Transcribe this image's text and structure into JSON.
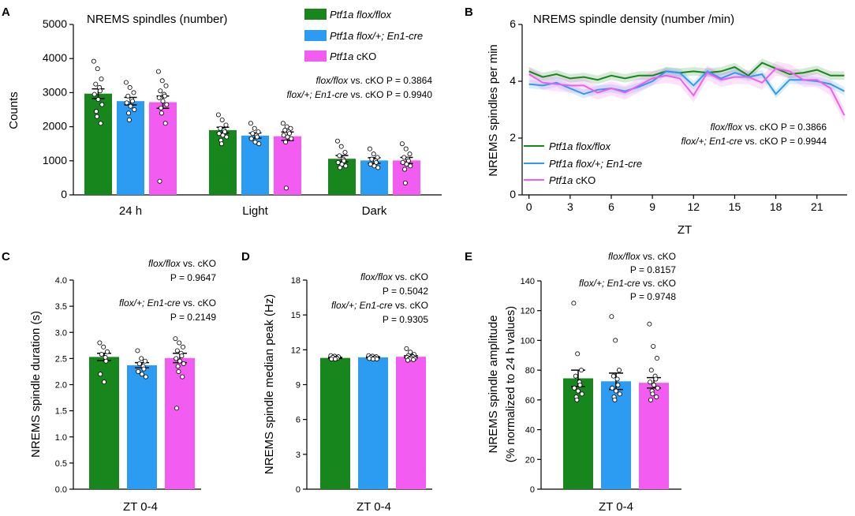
{
  "colors": {
    "flox": "#17871d",
    "het": "#2c9bf2",
    "cko": "#f25cf0",
    "axis": "#000000",
    "dot_fill": "#ffffff"
  },
  "legend": {
    "flox": "Ptf1a flox/flox",
    "het_pre": "Ptf1a flox/+; ",
    "het_it": "En1-cre",
    "cko_it": "Ptf1a",
    "cko_rest": " cKO"
  },
  "stats": {
    "cmp1": "flox/flox",
    "cmp2": "flox/+; En1-cre",
    "vs": " vs. cKO",
    "A": {
      "p1": "P = 0.3864",
      "p2": "P = 0.9940"
    },
    "B": {
      "p1": "P = 0.3866",
      "p2": "P = 0.9944"
    },
    "C": {
      "p1": "P = 0.9647",
      "p2": "P = 0.2149"
    },
    "D": {
      "p1": "P = 0.5042",
      "p2": "P = 0.9305"
    },
    "E": {
      "p1": "P = 0.8157",
      "p2": "P = 0.9748"
    }
  },
  "chart_data": [
    {
      "id": "A",
      "panel_label": "A",
      "type": "bar",
      "title": "NREMS spindles (number)",
      "ylabel": "Counts",
      "xlabel": "",
      "ylim": [
        0,
        5000
      ],
      "yticks": [
        0,
        1000,
        2000,
        3000,
        4000,
        5000
      ],
      "categories": [
        "24 h",
        "Light",
        "Dark"
      ],
      "series": [
        {
          "name": "Ptf1a flox/flox",
          "values": [
            2970,
            1900,
            1060
          ],
          "sem": [
            140,
            85,
            95
          ],
          "points": [
            [
              3920,
              3700,
              3400,
              3250,
              3150,
              3050,
              2950,
              2800,
              2650,
              2450,
              2300,
              2100
            ],
            [
              2350,
              2200,
              2050,
              1950,
              1900,
              1850,
              1800,
              1750,
              1700,
              1600,
              1500
            ],
            [
              1580,
              1420,
              1250,
              1150,
              1050,
              1000,
              950,
              900,
              850,
              800
            ]
          ]
        },
        {
          "name": "Ptf1a flox/+; En1-cre",
          "values": [
            2750,
            1740,
            1010
          ],
          "sem": [
            110,
            75,
            80
          ],
          "points": [
            [
              3300,
              3150,
              3000,
              2900,
              2800,
              2750,
              2700,
              2600,
              2500,
              2400,
              2200
            ],
            [
              2100,
              1950,
              1850,
              1800,
              1750,
              1700,
              1650,
              1550,
              1500
            ],
            [
              1350,
              1200,
              1100,
              1050,
              1000,
              950,
              900,
              850,
              800
            ]
          ]
        },
        {
          "name": "Ptf1a cKO",
          "values": [
            2720,
            1720,
            1010
          ],
          "sem": [
            180,
            125,
            90
          ],
          "points": [
            [
              3620,
              3350,
              3200,
              3050,
              2950,
              2900,
              2850,
              2750,
              2650,
              2550,
              2400,
              2100,
              400
            ],
            [
              2100,
              2000,
              1950,
              1900,
              1850,
              1800,
              1750,
              1700,
              1650,
              1550,
              200
            ],
            [
              1500,
              1350,
              1200,
              1100,
              1050,
              1000,
              950,
              900,
              850,
              750,
              350
            ]
          ]
        }
      ]
    },
    {
      "id": "B",
      "panel_label": "B",
      "type": "line",
      "title": "NREMS spindle density (number /min)",
      "ylabel": "NREMS spindles per min",
      "xlabel": "ZT",
      "ylim": [
        0,
        6
      ],
      "yticks": [
        0,
        2,
        4,
        6
      ],
      "xlim": [
        -0.5,
        23.2
      ],
      "xticks": [
        0,
        3,
        6,
        9,
        12,
        15,
        18,
        21
      ],
      "x": [
        0,
        1,
        2,
        3,
        4,
        5,
        6,
        7,
        8,
        9,
        10,
        11,
        12,
        13,
        14,
        15,
        16,
        17,
        18,
        19,
        20,
        21,
        22,
        23
      ],
      "series": [
        {
          "name": "Ptf1a flox/flox",
          "values": [
            4.35,
            4.15,
            4.25,
            4.1,
            4.15,
            4.05,
            4.2,
            4.1,
            4.2,
            4.2,
            4.35,
            4.3,
            4.35,
            4.3,
            4.35,
            4.5,
            4.2,
            4.65,
            4.45,
            4.25,
            4.3,
            4.4,
            4.2,
            4.2
          ],
          "sem": 0.15
        },
        {
          "name": "Ptf1a flox/+; En1-cre",
          "values": [
            3.9,
            3.85,
            3.95,
            3.75,
            3.55,
            3.7,
            3.75,
            3.65,
            3.8,
            4.0,
            4.35,
            4.3,
            3.85,
            4.35,
            4.1,
            4.3,
            4.15,
            4.25,
            3.55,
            4.05,
            4.05,
            4.0,
            3.9,
            3.65
          ],
          "sem": 0.15
        },
        {
          "name": "Ptf1a cKO",
          "values": [
            4.25,
            3.95,
            3.9,
            3.85,
            3.85,
            3.6,
            3.75,
            3.6,
            3.85,
            4.1,
            4.2,
            4.1,
            3.5,
            4.3,
            4.05,
            4.15,
            4.15,
            3.95,
            4.45,
            4.35,
            4.05,
            4.05,
            3.75,
            2.8
          ],
          "sem": 0.25
        }
      ]
    },
    {
      "id": "C",
      "panel_label": "C",
      "type": "bar",
      "title": "",
      "ylabel": "NREMS spindle duration (s)",
      "xlabel": "ZT 0-4",
      "ylim": [
        0,
        4.0
      ],
      "yticks": [
        0.0,
        0.5,
        1.0,
        1.5,
        2.0,
        2.5,
        3.0,
        3.5,
        4.0
      ],
      "tick_decimals": 1,
      "categories": [
        "Ptf1a flox/flox",
        "Ptf1a flox/+; En1-cre",
        "Ptf1a cKO"
      ],
      "values": [
        2.53,
        2.37,
        2.51
      ],
      "sem": [
        0.07,
        0.05,
        0.09
      ],
      "points": [
        [
          2.8,
          2.72,
          2.63,
          2.58,
          2.52,
          2.45,
          2.2,
          2.05
        ],
        [
          2.65,
          2.5,
          2.45,
          2.4,
          2.35,
          2.3,
          2.25,
          2.2,
          2.15
        ],
        [
          2.88,
          2.8,
          2.72,
          2.65,
          2.6,
          2.55,
          2.5,
          2.45,
          2.4,
          2.35,
          2.25,
          2.15,
          1.55
        ]
      ]
    },
    {
      "id": "D",
      "panel_label": "D",
      "type": "bar",
      "title": "",
      "ylabel": "NREMS spindle median peak (Hz)",
      "xlabel": "ZT 0-4",
      "ylim": [
        0,
        18
      ],
      "yticks": [
        0,
        3,
        6,
        9,
        12,
        15,
        18
      ],
      "categories": [
        "Ptf1a flox/flox",
        "Ptf1a flox/+; En1-cre",
        "Ptf1a cKO"
      ],
      "values": [
        11.3,
        11.35,
        11.4
      ],
      "sem": [
        0.05,
        0.05,
        0.08
      ],
      "points": [
        [
          11.5,
          11.45,
          11.4,
          11.35,
          11.3,
          11.25,
          11.2,
          11.2
        ],
        [
          11.5,
          11.45,
          11.4,
          11.35,
          11.3,
          11.3,
          11.25,
          11.2,
          11.2
        ],
        [
          12.1,
          11.8,
          11.6,
          11.5,
          11.45,
          11.4,
          11.35,
          11.3,
          11.25,
          11.2,
          11.2,
          11.15,
          11.1
        ]
      ]
    },
    {
      "id": "E",
      "panel_label": "E",
      "type": "bar",
      "title": "",
      "ylabel": "NREMS spindle amplitude",
      "ylabel2": "(% normalized to 24 h values)",
      "xlabel": "ZT 0-4",
      "ylim": [
        0,
        140
      ],
      "yticks": [
        0,
        20,
        40,
        60,
        80,
        100,
        120,
        140
      ],
      "categories": [
        "Ptf1a flox/flox",
        "Ptf1a flox/+; En1-cre",
        "Ptf1a cKO"
      ],
      "values": [
        74.5,
        72.5,
        71.5
      ],
      "sem": [
        5.5,
        5.5,
        3.5
      ],
      "points": [
        [
          125,
          91,
          80,
          76,
          72,
          70,
          68,
          66,
          64,
          62,
          60
        ],
        [
          116,
          100,
          80,
          76,
          74,
          70,
          68,
          66,
          64,
          62,
          60
        ],
        [
          111,
          96,
          88,
          80,
          76,
          74,
          72,
          70,
          68,
          66,
          64,
          62,
          60
        ]
      ]
    }
  ]
}
